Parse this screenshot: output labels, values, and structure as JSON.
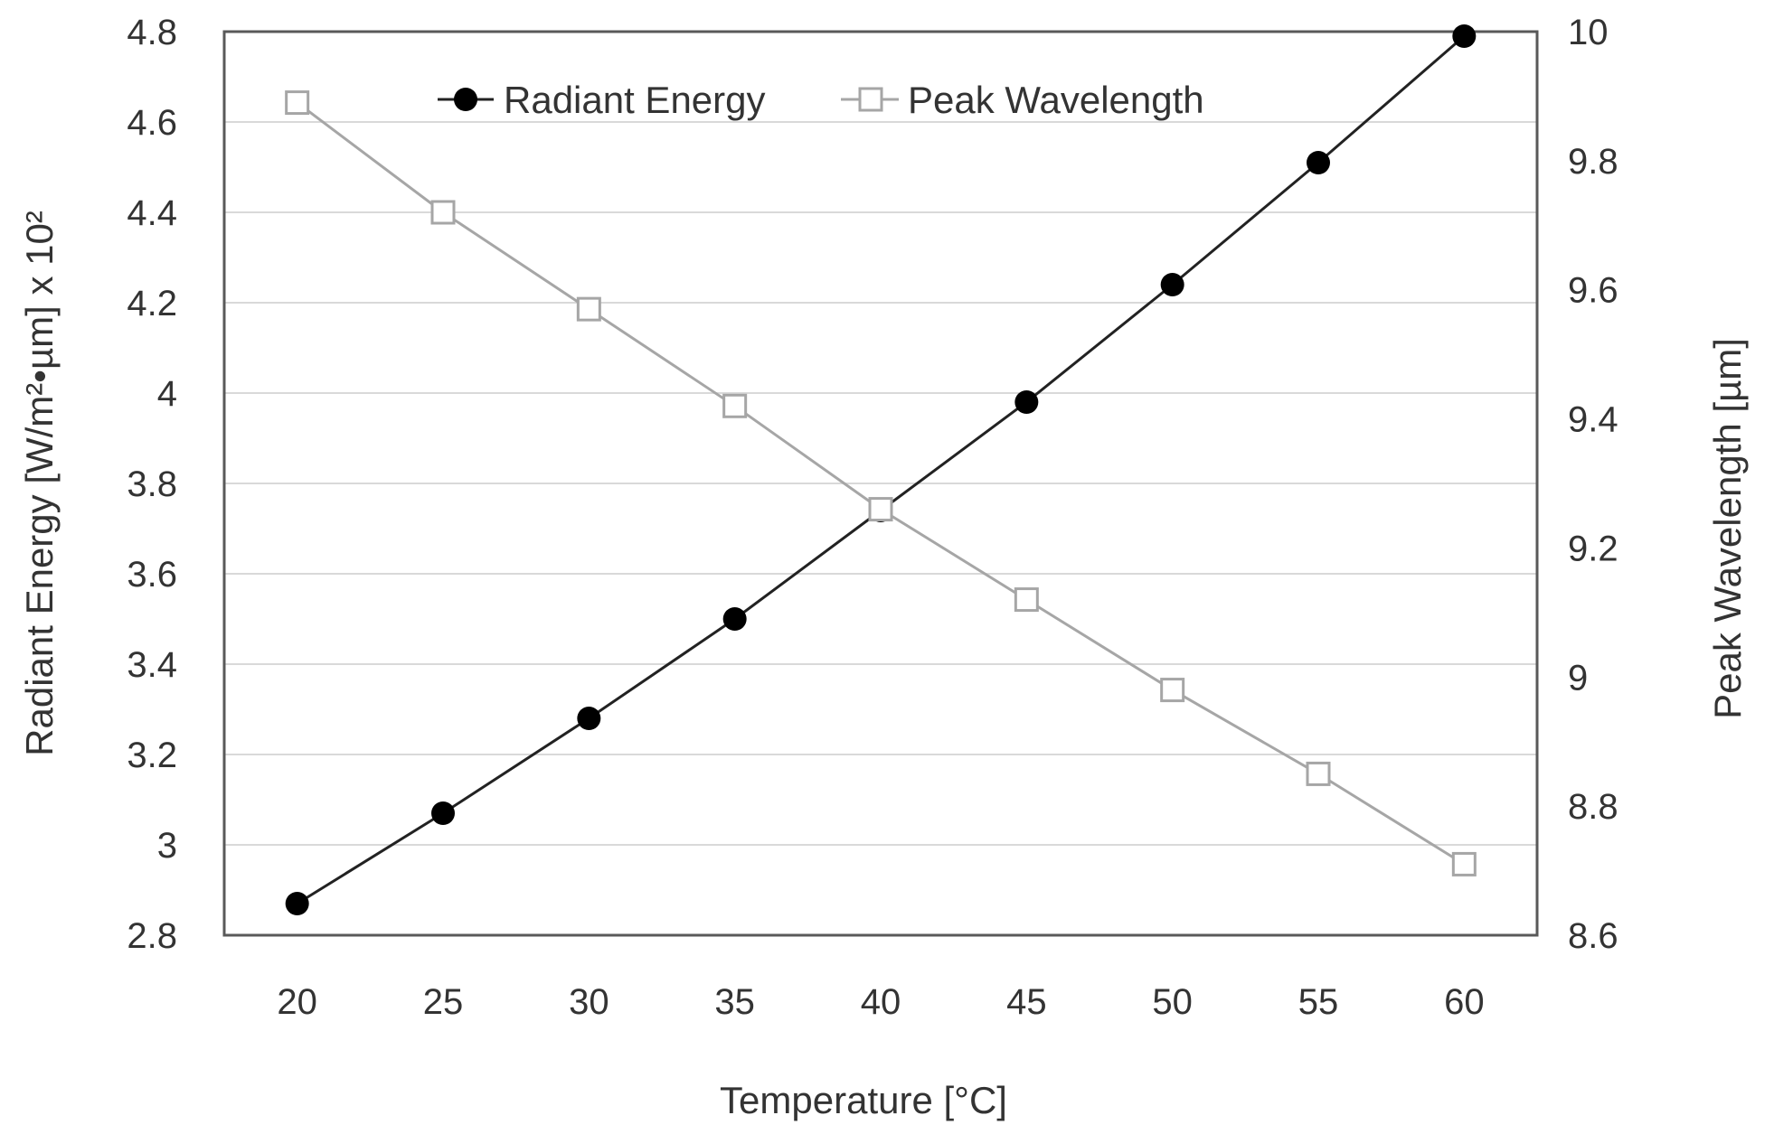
{
  "chart_data": {
    "type": "line",
    "title": "",
    "xlabel": "Temperature [°C]",
    "ylabel": "Radiant Energy [W/m²•µm] x 10²",
    "y2label": "Peak Wavelength [µm]",
    "x": [
      20,
      25,
      30,
      35,
      40,
      45,
      50,
      55,
      60
    ],
    "xlim": [
      17.5,
      62.5
    ],
    "ylim": [
      2.8,
      4.8
    ],
    "y2lim": [
      8.6,
      10
    ],
    "xticks": [
      "20",
      "25",
      "30",
      "35",
      "40",
      "45",
      "50",
      "55",
      "60"
    ],
    "yticks": [
      "2.8",
      "3",
      "3.2",
      "3.4",
      "3.6",
      "3.8",
      "4",
      "4.2",
      "4.4",
      "4.6",
      "4.8"
    ],
    "y2ticks": [
      "8.6",
      "8.8",
      "9",
      "9.2",
      "9.4",
      "9.6",
      "9.8",
      "10"
    ],
    "grid": true,
    "legend_position": "top-center",
    "series": [
      {
        "name": "Radiant Energy",
        "axis": "left",
        "marker": "filled-circle",
        "color": "#222222",
        "values": [
          2.87,
          3.07,
          3.28,
          3.5,
          3.74,
          3.98,
          4.24,
          4.51,
          4.79
        ]
      },
      {
        "name": "Peak Wavelength",
        "axis": "right",
        "marker": "open-square",
        "color": "#a6a6a6",
        "values": [
          9.89,
          9.72,
          9.57,
          9.42,
          9.26,
          9.12,
          8.98,
          8.85,
          8.71
        ]
      }
    ]
  }
}
